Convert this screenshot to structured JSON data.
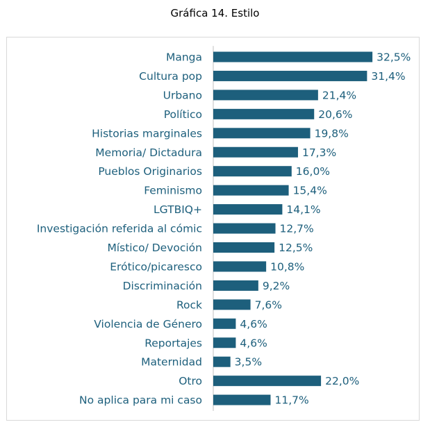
{
  "title": "Gráfica 14. Estilo",
  "colors": {
    "bar": "#1d5f7c",
    "text": "#1d5f7c",
    "axis": "#bfbfbf"
  },
  "chart_data": {
    "type": "bar",
    "orientation": "horizontal",
    "title": "Gráfica 14. Estilo",
    "xlabel": "",
    "ylabel": "",
    "grid": false,
    "legend": "none",
    "xlim": [
      0,
      35
    ],
    "categories": [
      "Manga",
      "Cultura pop",
      "Urbano",
      "Político",
      "Historias marginales",
      "Memoria/ Dictadura",
      "Pueblos Originarios",
      "Feminismo",
      "LGTBIQ+",
      "Investigación referida al cómic",
      "Místico/ Devoción",
      "Erótico/picaresco",
      "Discriminación",
      "Rock",
      "Violencia de Género",
      "Reportajes",
      "Maternidad",
      "Otro",
      "No aplica para mi caso"
    ],
    "values": [
      32.5,
      31.4,
      21.4,
      20.6,
      19.8,
      17.3,
      16.0,
      15.4,
      14.1,
      12.7,
      12.5,
      10.8,
      9.2,
      7.6,
      4.6,
      4.6,
      3.5,
      22.0,
      11.7
    ],
    "data_labels": [
      "32,5%",
      "31,4%",
      "21,4%",
      "20,6%",
      "19,8%",
      "17,3%",
      "16,0%",
      "15,4%",
      "14,1%",
      "12,7%",
      "12,5%",
      "10,8%",
      "9,2%",
      "7,6%",
      "4,6%",
      "4,6%",
      "3,5%",
      "22,0%",
      "11,7%"
    ]
  }
}
